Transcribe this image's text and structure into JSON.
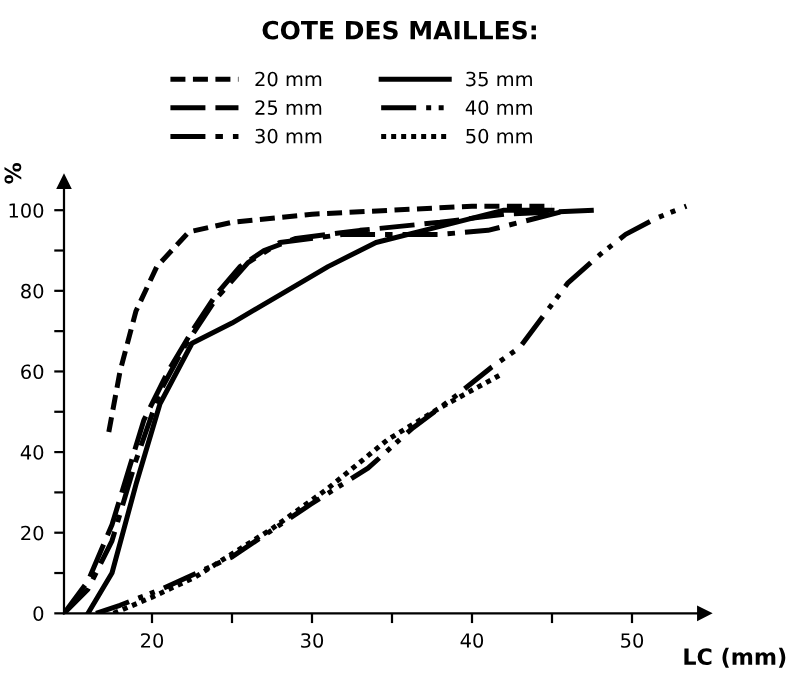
{
  "chart_data": {
    "type": "line",
    "title": "COTE DES MAILLES:",
    "xlabel": "LC (mm)",
    "ylabel": "%",
    "xlim": [
      14.5,
      54.5
    ],
    "ylim": [
      0,
      107
    ],
    "xticks": [
      20,
      {
        "value": 25,
        "label": null
      },
      30,
      {
        "value": 35,
        "label": null
      },
      40,
      {
        "value": 45,
        "label": null
      },
      50
    ],
    "yticks": [
      0,
      {
        "value": 10,
        "label": null
      },
      20,
      {
        "value": 30,
        "label": null
      },
      40,
      {
        "value": 50,
        "label": null
      },
      60,
      {
        "value": 70,
        "label": null
      },
      80,
      {
        "value": 90,
        "label": null
      },
      100
    ],
    "grid": false,
    "legend": "top",
    "marker": "none",
    "series": [
      {
        "name": "20 mm",
        "color": "#000000",
        "line_style": "dashed",
        "x": [
          17.3,
          18,
          19,
          20.3,
          22.3,
          25,
          30,
          35,
          40,
          45
        ],
        "values": [
          45,
          60,
          75,
          86,
          94.6,
          97,
          99,
          100,
          101,
          101
        ]
      },
      {
        "name": "25 mm",
        "color": "#000000",
        "line_style": "longdash",
        "x": [
          14.5,
          16,
          17.5,
          18.5,
          19.5,
          21,
          22.5,
          24,
          25.5,
          27,
          29,
          33,
          38,
          42,
          47.7
        ],
        "values": [
          0,
          8,
          22,
          35,
          48,
          60,
          70,
          79,
          86,
          90,
          93,
          95,
          97,
          99,
          100
        ]
      },
      {
        "name": "30 mm",
        "color": "#000000",
        "line_style": "dashdot",
        "x": [
          14.5,
          16,
          17.5,
          19,
          20.5,
          22,
          24,
          26,
          28,
          32,
          38,
          41,
          44,
          46
        ],
        "values": [
          0,
          6,
          18,
          38,
          55,
          66,
          78,
          87,
          92,
          94,
          94,
          95,
          98,
          100
        ]
      },
      {
        "name": "35 mm",
        "color": "#000000",
        "line_style": "solid",
        "x": [
          16,
          17.5,
          19,
          20.5,
          22.5,
          25,
          28,
          31,
          34,
          38,
          42,
          45
        ],
        "values": [
          0,
          10,
          32,
          52,
          67,
          72,
          79,
          86,
          92,
          96,
          100,
          100
        ]
      },
      {
        "name": "40 mm",
        "color": "#000000",
        "line_style": "dashdotdot",
        "x": [
          16.5,
          18,
          20.6,
          25,
          29.9,
          33.5,
          36.3,
          39,
          41.2,
          43,
          44.5,
          46,
          48,
          49.6,
          51.5,
          53.4
        ],
        "values": [
          0,
          2,
          6,
          14,
          27,
          36,
          46,
          54,
          61,
          66,
          74,
          82,
          89,
          94,
          98,
          101
        ]
      },
      {
        "name": "50 mm",
        "color": "#000000",
        "line_style": "dotted",
        "x": [
          17.6,
          20,
          22.7,
          27.5,
          31,
          34.7,
          38,
          41.7
        ],
        "values": [
          0,
          4,
          9,
          21,
          31,
          43,
          51,
          59
        ]
      }
    ]
  }
}
